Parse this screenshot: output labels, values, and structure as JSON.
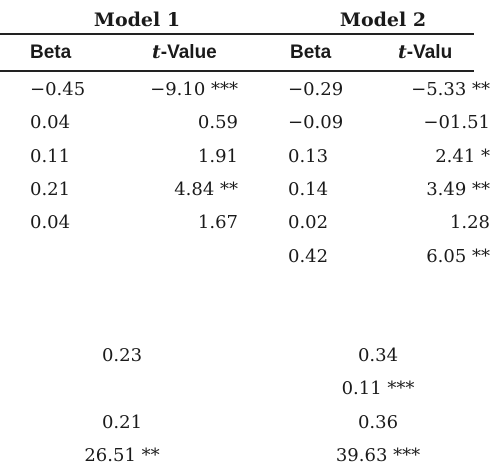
{
  "table": {
    "groups": [
      "Model 1",
      "Model 2"
    ],
    "headers": {
      "beta": "Beta",
      "t_italic": "t",
      "t_rest_m1": "-Value",
      "t_rest_m2": "-Valu"
    },
    "rows": [
      [
        "−0.45",
        "−9.10 ***",
        "−0.29",
        "−5.33 **"
      ],
      [
        "0.04",
        "0.59",
        "−0.09",
        "−01.51"
      ],
      [
        "0.11",
        "1.91",
        "0.13",
        "2.41 *"
      ],
      [
        "0.21",
        "4.84 **",
        "0.14",
        "3.49 **"
      ],
      [
        "0.04",
        "1.67",
        "0.02",
        "1.28"
      ],
      [
        "",
        "",
        "0.42",
        "6.05 **"
      ]
    ],
    "stats": [
      [
        "0.23",
        "0.34"
      ],
      [
        "",
        "0.11 ***"
      ],
      [
        "0.21",
        "0.36"
      ],
      [
        "26.51 **",
        "39.63 ***"
      ]
    ]
  }
}
